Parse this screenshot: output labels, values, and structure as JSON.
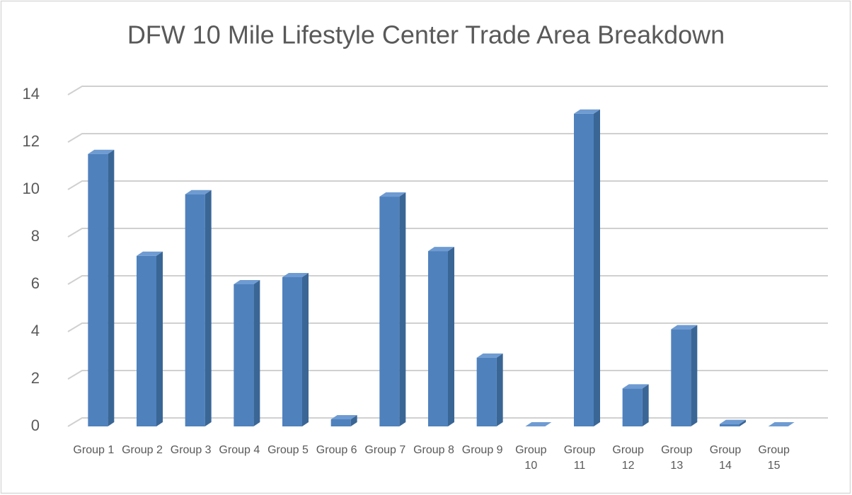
{
  "chart_data": {
    "type": "bar3d",
    "title": "DFW 10 Mile Lifestyle Center Trade Area Breakdown",
    "categories": [
      "Group 1",
      "Group 2",
      "Group 3",
      "Group 4",
      "Group 5",
      "Group 6",
      "Group 7",
      "Group 8",
      "Group 9",
      "Group 10",
      "Group 11",
      "Group 12",
      "Group 13",
      "Group 14",
      "Group 15"
    ],
    "values": [
      11.5,
      7.2,
      9.8,
      6.0,
      6.3,
      0.3,
      9.7,
      7.4,
      2.9,
      0,
      13.2,
      1.6,
      4.1,
      0.1,
      0
    ],
    "color": "#4f81bd",
    "ylim": [
      0,
      14
    ],
    "yticks": [
      0,
      2,
      4,
      6,
      8,
      10,
      12,
      14
    ],
    "grid": true
  }
}
